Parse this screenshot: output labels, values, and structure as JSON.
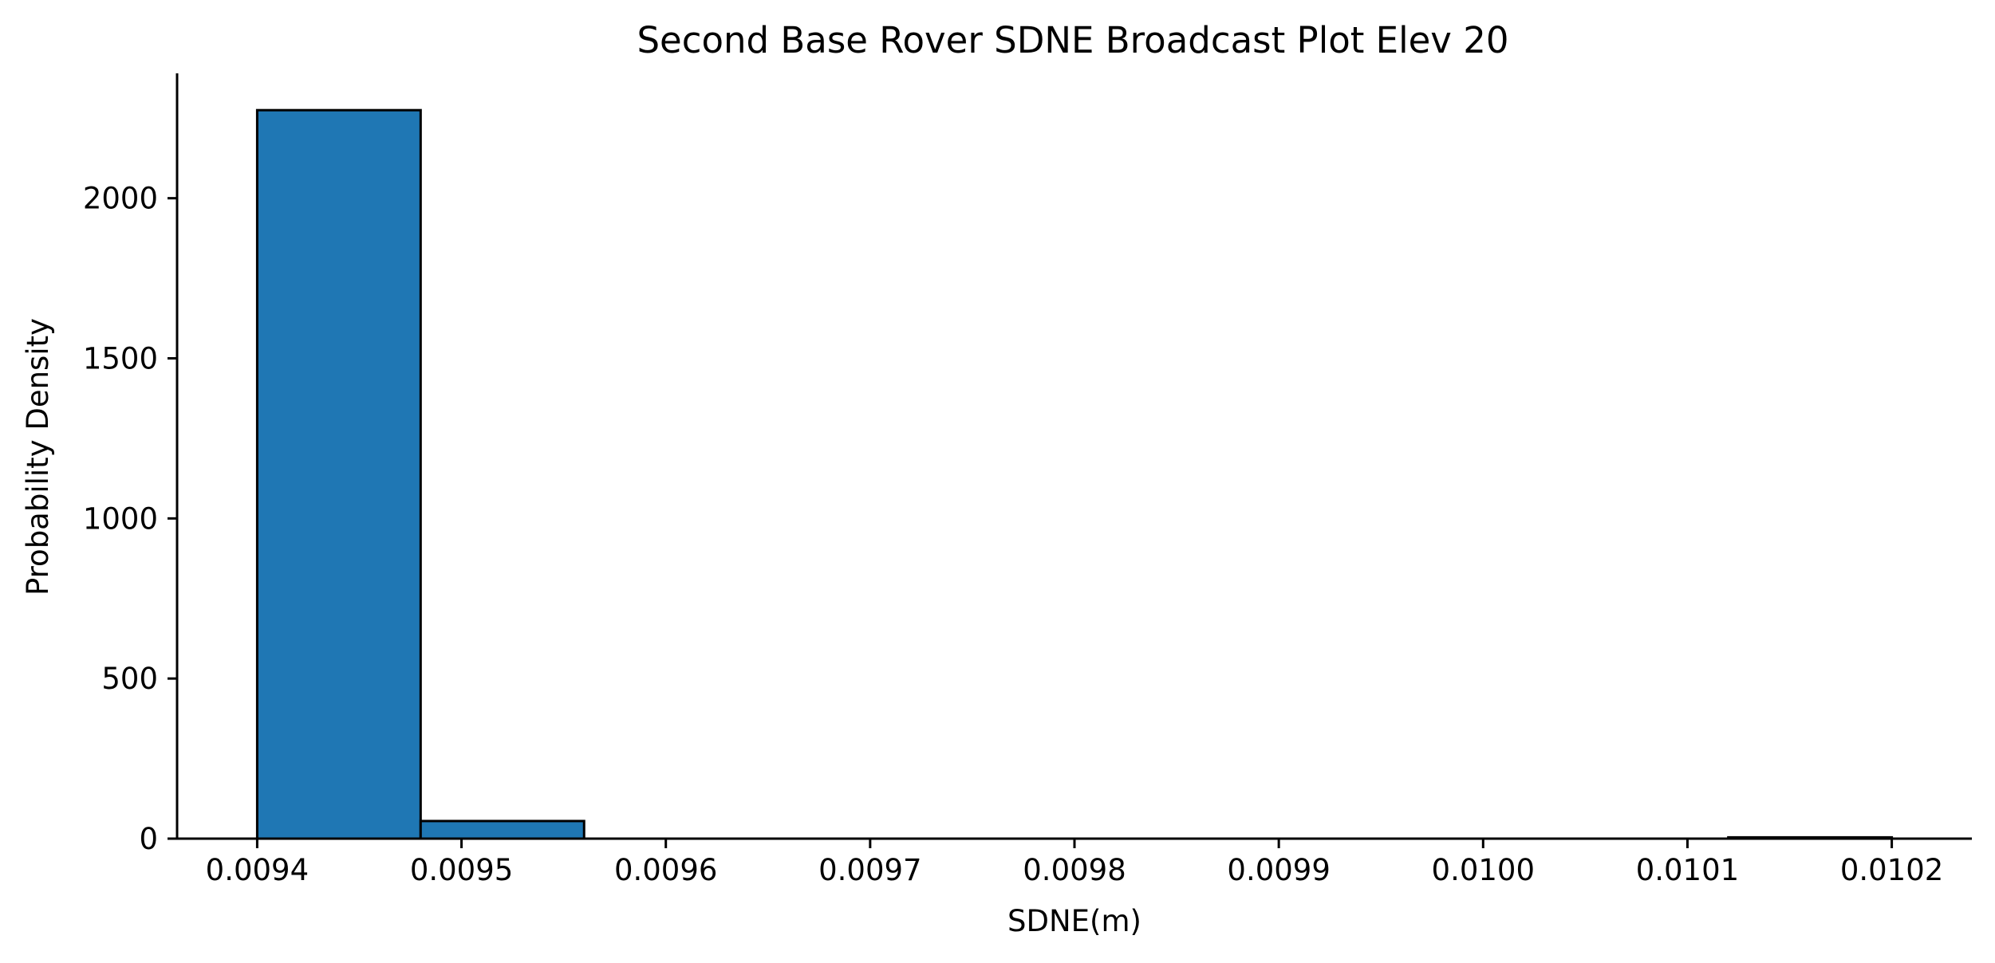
{
  "chart_data": {
    "type": "bar",
    "title": "Second Base Rover SDNE Broadcast Plot Elev 20",
    "xlabel": "SDNE(m)",
    "ylabel": "Probability Density",
    "xlim": [
      0.0093608,
      0.0102392
    ],
    "ylim": [
      0,
      2390
    ],
    "grid": false,
    "bar_color": "#1f77b4",
    "edge_color": "#000000",
    "bins": [
      {
        "x0": 0.0094,
        "x1": 0.00948,
        "value": 2275
      },
      {
        "x0": 0.00948,
        "x1": 0.00956,
        "value": 55
      },
      {
        "x0": 0.00956,
        "x1": 0.00964,
        "value": 0
      },
      {
        "x0": 0.00964,
        "x1": 0.00972,
        "value": 0
      },
      {
        "x0": 0.00972,
        "x1": 0.0098,
        "value": 0
      },
      {
        "x0": 0.0098,
        "x1": 0.00988,
        "value": 0
      },
      {
        "x0": 0.00988,
        "x1": 0.00996,
        "value": 0
      },
      {
        "x0": 0.00996,
        "x1": 0.01004,
        "value": 0
      },
      {
        "x0": 0.01004,
        "x1": 0.01012,
        "value": 0
      },
      {
        "x0": 0.01012,
        "x1": 0.0102,
        "value": 4
      }
    ],
    "x_ticks": [
      {
        "value": 0.0094,
        "label": "0.0094"
      },
      {
        "value": 0.0095,
        "label": "0.0095"
      },
      {
        "value": 0.0096,
        "label": "0.0096"
      },
      {
        "value": 0.0097,
        "label": "0.0097"
      },
      {
        "value": 0.0098,
        "label": "0.0098"
      },
      {
        "value": 0.0099,
        "label": "0.0099"
      },
      {
        "value": 0.01,
        "label": "0.0100"
      },
      {
        "value": 0.0101,
        "label": "0.0101"
      },
      {
        "value": 0.0102,
        "label": "0.0102"
      }
    ],
    "y_ticks": [
      {
        "value": 0,
        "label": "0"
      },
      {
        "value": 500,
        "label": "500"
      },
      {
        "value": 1000,
        "label": "1000"
      },
      {
        "value": 1500,
        "label": "1500"
      },
      {
        "value": 2000,
        "label": "2000"
      }
    ]
  }
}
